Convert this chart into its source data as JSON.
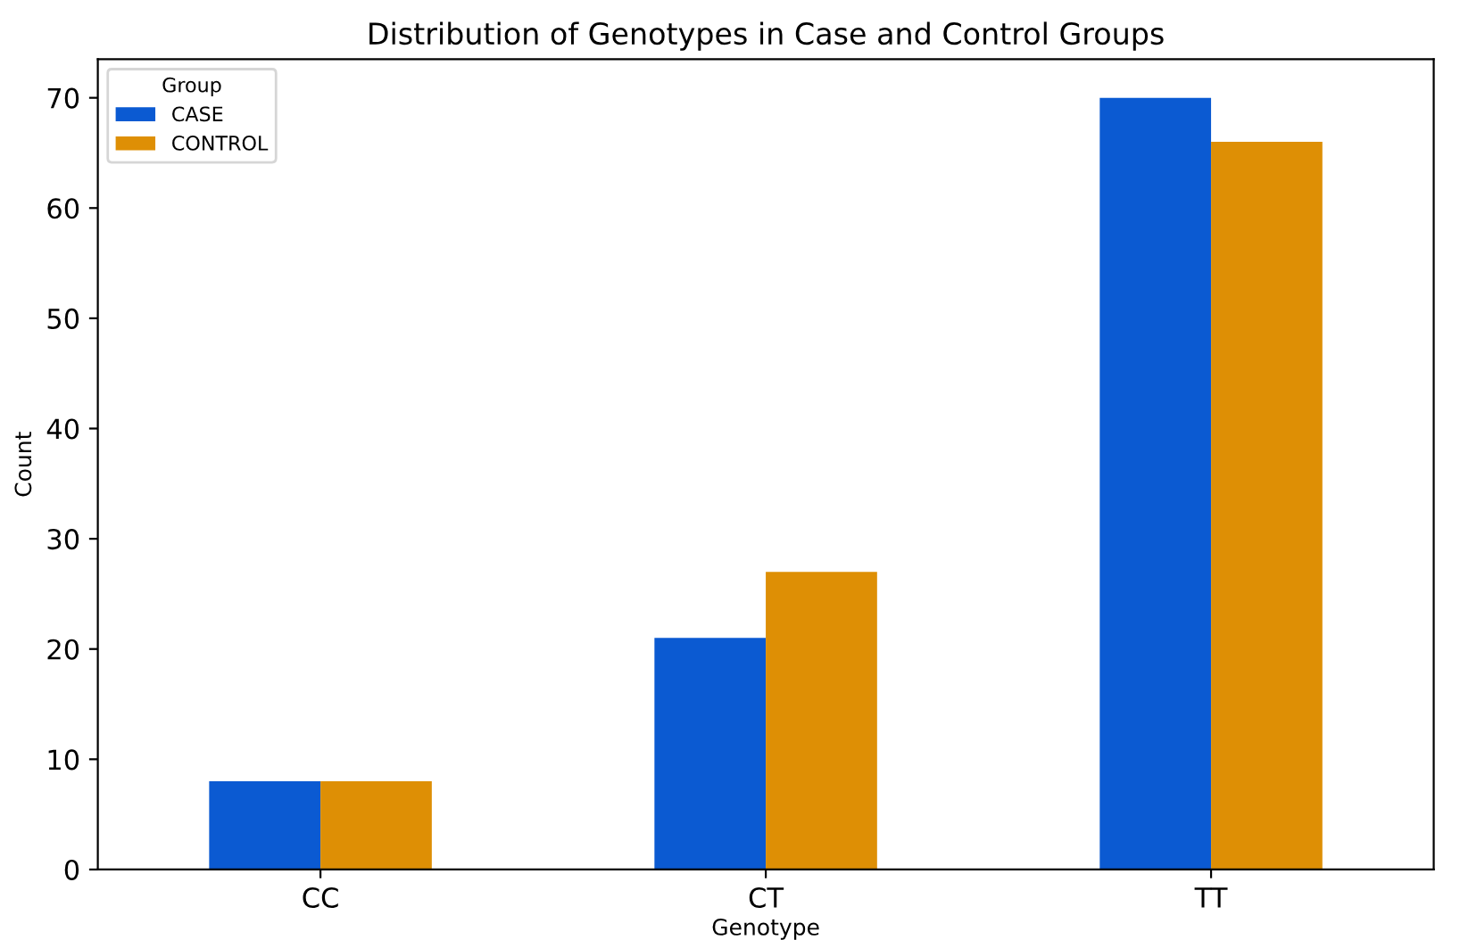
{
  "chart_data": {
    "type": "bar",
    "title": "Distribution of Genotypes in Case and Control Groups",
    "xlabel": "Genotype",
    "ylabel": "Count",
    "legend_title": "Group",
    "categories": [
      "CC",
      "CT",
      "TT"
    ],
    "series": [
      {
        "name": "CASE",
        "color": "#0b5ad2",
        "values": [
          8,
          21,
          70
        ]
      },
      {
        "name": "CONTROL",
        "color": "#de8f05",
        "values": [
          8,
          27,
          66
        ]
      }
    ],
    "ylim": [
      0,
      73.5
    ],
    "yticks": [
      0,
      10,
      20,
      30,
      40,
      50,
      60,
      70
    ],
    "legend": "top left",
    "grid": false
  }
}
